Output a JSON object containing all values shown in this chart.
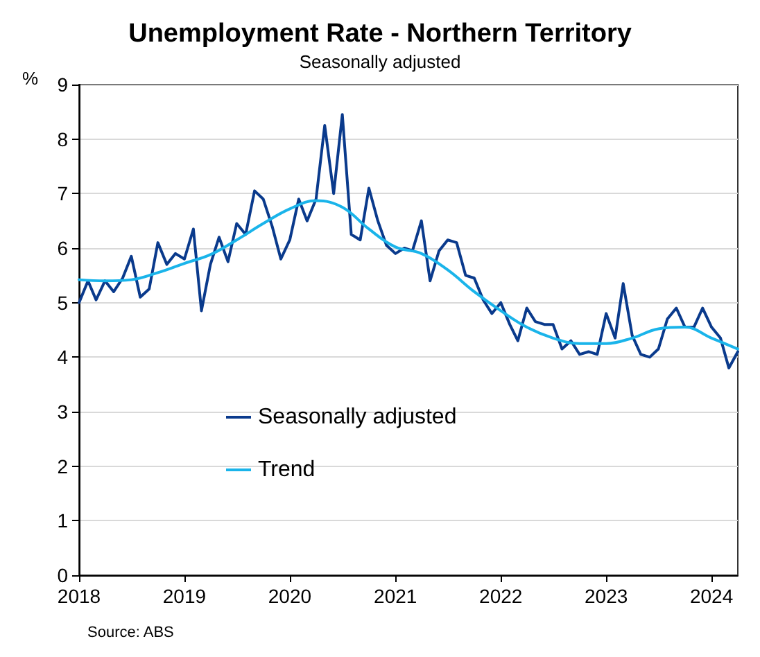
{
  "chart_data": {
    "type": "line",
    "title": "Unemployment Rate - Northern Territory",
    "subtitle": "Seasonally adjusted",
    "ylabel": "%",
    "annotations": [
      "Source: ABS"
    ],
    "xlim": [
      "2018-01",
      "2024-04"
    ],
    "xticks": [
      "2018",
      "2019",
      "2020",
      "2021",
      "2022",
      "2023",
      "2024"
    ],
    "ylim": [
      0,
      9
    ],
    "yticks": [
      0,
      1,
      2,
      3,
      4,
      5,
      6,
      7,
      8,
      9
    ],
    "grid": "y",
    "legend": "bottom left",
    "marker": "none",
    "line_style": "solid",
    "series": [
      {
        "name": "Seasonally adjusted",
        "color": "#0a3a8c",
        "x": [
          "2018-01",
          "2018-02",
          "2018-03",
          "2018-04",
          "2018-05",
          "2018-06",
          "2018-07",
          "2018-08",
          "2018-09",
          "2018-10",
          "2018-11",
          "2018-12",
          "2019-01",
          "2019-02",
          "2019-03",
          "2019-04",
          "2019-05",
          "2019-06",
          "2019-07",
          "2019-08",
          "2019-09",
          "2019-10",
          "2019-11",
          "2019-12",
          "2020-01",
          "2020-02",
          "2020-03",
          "2020-04",
          "2020-05",
          "2020-06",
          "2020-07",
          "2020-08",
          "2020-09",
          "2020-10",
          "2020-11",
          "2020-12",
          "2021-01",
          "2021-02",
          "2021-03",
          "2021-04",
          "2021-05",
          "2021-06",
          "2021-07",
          "2021-08",
          "2021-09",
          "2021-10",
          "2021-11",
          "2021-12",
          "2022-01",
          "2022-02",
          "2022-03",
          "2022-04",
          "2022-05",
          "2022-06",
          "2022-07",
          "2022-08",
          "2022-09",
          "2022-10",
          "2022-11",
          "2022-12",
          "2023-01",
          "2023-02",
          "2023-03",
          "2023-04",
          "2023-05",
          "2023-06",
          "2023-07",
          "2023-08",
          "2023-09",
          "2023-10",
          "2023-11",
          "2023-12",
          "2024-01",
          "2024-02",
          "2024-03",
          "2024-04"
        ],
        "values": [
          5.0,
          5.4,
          5.05,
          5.4,
          5.2,
          5.45,
          5.85,
          5.1,
          5.25,
          6.1,
          5.7,
          5.9,
          5.8,
          6.35,
          4.85,
          5.7,
          6.2,
          5.75,
          6.45,
          6.25,
          7.05,
          6.9,
          6.4,
          5.8,
          6.15,
          6.9,
          6.5,
          6.9,
          8.25,
          7.0,
          8.45,
          6.25,
          6.15,
          7.1,
          6.5,
          6.05,
          5.9,
          6.0,
          5.95,
          6.5,
          5.4,
          5.95,
          6.15,
          6.1,
          5.5,
          5.45,
          5.05,
          4.8,
          5.0,
          4.6,
          4.3,
          4.9,
          4.65,
          4.6,
          4.6,
          4.15,
          4.3,
          4.05,
          4.1,
          4.05,
          4.8,
          4.35,
          5.35,
          4.4,
          4.05,
          4.0,
          4.15,
          4.7,
          4.9,
          4.55,
          4.55,
          4.9,
          4.55,
          4.35,
          3.8,
          4.1
        ]
      },
      {
        "name": "Trend",
        "color": "#1ab4ea",
        "x": [
          "2018-01",
          "2018-04",
          "2018-07",
          "2018-10",
          "2019-01",
          "2019-04",
          "2019-07",
          "2019-10",
          "2020-01",
          "2020-04",
          "2020-07",
          "2020-10",
          "2021-01",
          "2021-04",
          "2021-07",
          "2021-10",
          "2022-01",
          "2022-04",
          "2022-07",
          "2022-10",
          "2023-01",
          "2023-04",
          "2023-07",
          "2023-10",
          "2024-01",
          "2024-04"
        ],
        "values": [
          5.42,
          5.4,
          5.42,
          5.55,
          5.72,
          5.88,
          6.15,
          6.45,
          6.72,
          6.87,
          6.75,
          6.35,
          6.02,
          5.9,
          5.6,
          5.2,
          4.85,
          4.55,
          4.35,
          4.25,
          4.25,
          4.35,
          4.52,
          4.55,
          4.35,
          4.15
        ]
      }
    ]
  }
}
